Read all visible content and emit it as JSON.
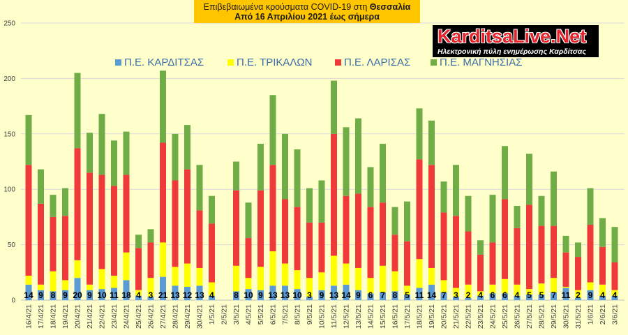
{
  "logo": {
    "name": "KarditsaLive.Net",
    "tagline": "Ηλεκτρονική πύλη ενημέρωσης Καρδίτσας"
  },
  "chart_data": {
    "type": "bar",
    "stacked": true,
    "title": "Επιβεβαιωμένα κρούσματα COVID-19 στη Θεσσαλία",
    "subtitle": "Από 16 Απριλίου 2021 έως σήμερα",
    "legend": "top",
    "grid": true,
    "ylim": [
      0,
      250
    ],
    "yticks": [
      0,
      50,
      100,
      150,
      200,
      250
    ],
    "categories": [
      "16/4/21",
      "17/4/21",
      "18/4/21",
      "19/4/21",
      "20/4/21",
      "21/4/21",
      "22/4/21",
      "23/4/21",
      "24/4/21",
      "25/4/21",
      "26/4/21",
      "27/4/21",
      "28/4/21",
      "29/4/21",
      "30/4/21",
      "1/5/21",
      "2/5/21",
      "3/5/21",
      "4/5/21",
      "5/5/21",
      "6/5/21",
      "7/5/21",
      "8/5/21",
      "9/5/21",
      "10/5/21",
      "11/5/21",
      "12/5/21",
      "13/5/21",
      "14/5/21",
      "15/5/21",
      "16/5/21",
      "17/5/21",
      "18/5/21",
      "19/5/21",
      "20/5/21",
      "21/5/21",
      "22/5/21",
      "23/5/21",
      "24/5/21",
      "25/5/21",
      "26/5/21",
      "27/5/21",
      "28/5/21",
      "29/5/21",
      "30/5/21",
      "31/5/21",
      "1/6/21",
      "2/6/21",
      "3/6/21"
    ],
    "series": [
      {
        "name": "Π.Ε. ΚΑΡΔΙΤΣΑΣ",
        "color": "#5B9BD5",
        "values": [
          14,
          9,
          8,
          9,
          20,
          9,
          10,
          11,
          18,
          4,
          3,
          21,
          13,
          12,
          13,
          4,
          null,
          8,
          10,
          9,
          13,
          13,
          10,
          3,
          9,
          13,
          14,
          9,
          6,
          7,
          8,
          5,
          11,
          14,
          7,
          3,
          2,
          4,
          6,
          6,
          4,
          5,
          5,
          7,
          11,
          2,
          9,
          4,
          4
        ]
      },
      {
        "name": "Π.Ε. ΤΡΙΚΑΛΩΝ",
        "color": "#FFFF00",
        "values": [
          8,
          5,
          18,
          9,
          16,
          5,
          18,
          11,
          25,
          5,
          17,
          31,
          17,
          21,
          16,
          12,
          null,
          23,
          10,
          21,
          31,
          20,
          17,
          17,
          16,
          27,
          19,
          20,
          14,
          24,
          18,
          8,
          26,
          15,
          11,
          8,
          12,
          4,
          8,
          13,
          10,
          5,
          10,
          13,
          1,
          7,
          7,
          10,
          5
        ]
      },
      {
        "name": "Π.Ε. ΛΑΡΙΣΑΣ",
        "color": "#F03A3A",
        "values": [
          100,
          73,
          49,
          58,
          101,
          101,
          85,
          81,
          70,
          38,
          32,
          90,
          78,
          85,
          52,
          53,
          null,
          68,
          36,
          69,
          78,
          58,
          57,
          50,
          45,
          110,
          61,
          67,
          64,
          57,
          33,
          40,
          90,
          93,
          61,
          65,
          48,
          33,
          38,
          72,
          51,
          76,
          52,
          47,
          31,
          30,
          52,
          34,
          25
        ]
      },
      {
        "name": "Π.Ε. ΜΑΓΝΗΣΙΑΣ",
        "color": "#70AD47",
        "values": [
          45,
          31,
          20,
          25,
          68,
          36,
          55,
          41,
          39,
          12,
          12,
          65,
          42,
          40,
          41,
          25,
          null,
          26,
          32,
          42,
          63,
          59,
          52,
          31,
          38,
          48,
          62,
          68,
          36,
          53,
          25,
          36,
          46,
          40,
          28,
          46,
          32,
          13,
          43,
          48,
          20,
          46,
          27,
          49,
          15,
          13,
          33,
          26,
          32
        ]
      }
    ]
  }
}
